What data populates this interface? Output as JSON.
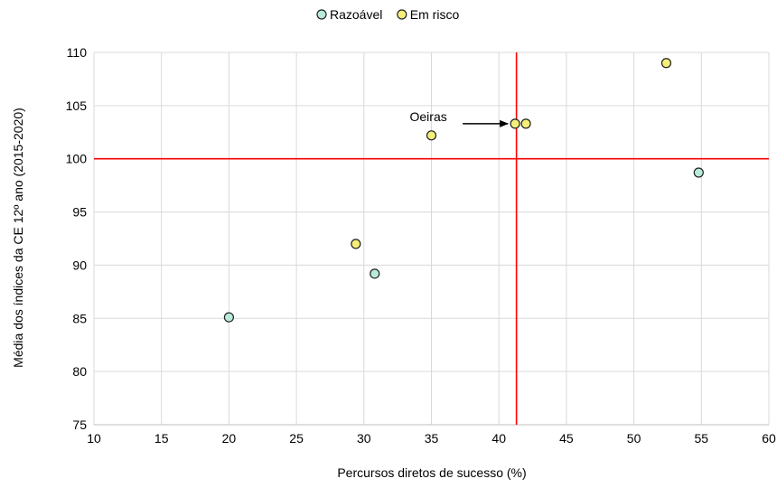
{
  "chart_data": {
    "type": "scatter",
    "xlabel": "Percursos diretos de sucesso (%)",
    "ylabel": "Média dos índices da CE 12º ano (2015-2020)",
    "xlim": [
      10,
      60
    ],
    "ylim": [
      75,
      110
    ],
    "xticks": [
      10,
      15,
      20,
      25,
      30,
      35,
      40,
      45,
      50,
      55,
      60
    ],
    "yticks": [
      75,
      80,
      85,
      90,
      95,
      100,
      105,
      110
    ],
    "grid": true,
    "legend_position": "top-center",
    "reference_lines": {
      "x": 41.3,
      "y": 100,
      "color": "#ff0000"
    },
    "series": [
      {
        "name": "Razoável",
        "color": "#b9ebd9",
        "points": [
          {
            "x": 20.0,
            "y": 85.1
          },
          {
            "x": 30.8,
            "y": 89.2
          },
          {
            "x": 54.8,
            "y": 98.7
          }
        ]
      },
      {
        "name": "Em risco",
        "color": "#f5ef7a",
        "points": [
          {
            "x": 29.4,
            "y": 92.0
          },
          {
            "x": 35.0,
            "y": 102.2
          },
          {
            "x": 41.2,
            "y": 103.3
          },
          {
            "x": 42.0,
            "y": 103.3
          },
          {
            "x": 52.4,
            "y": 109.0
          }
        ]
      }
    ],
    "annotations": [
      {
        "text": "Oeiras",
        "x": 41.2,
        "y": 103.3
      }
    ]
  }
}
